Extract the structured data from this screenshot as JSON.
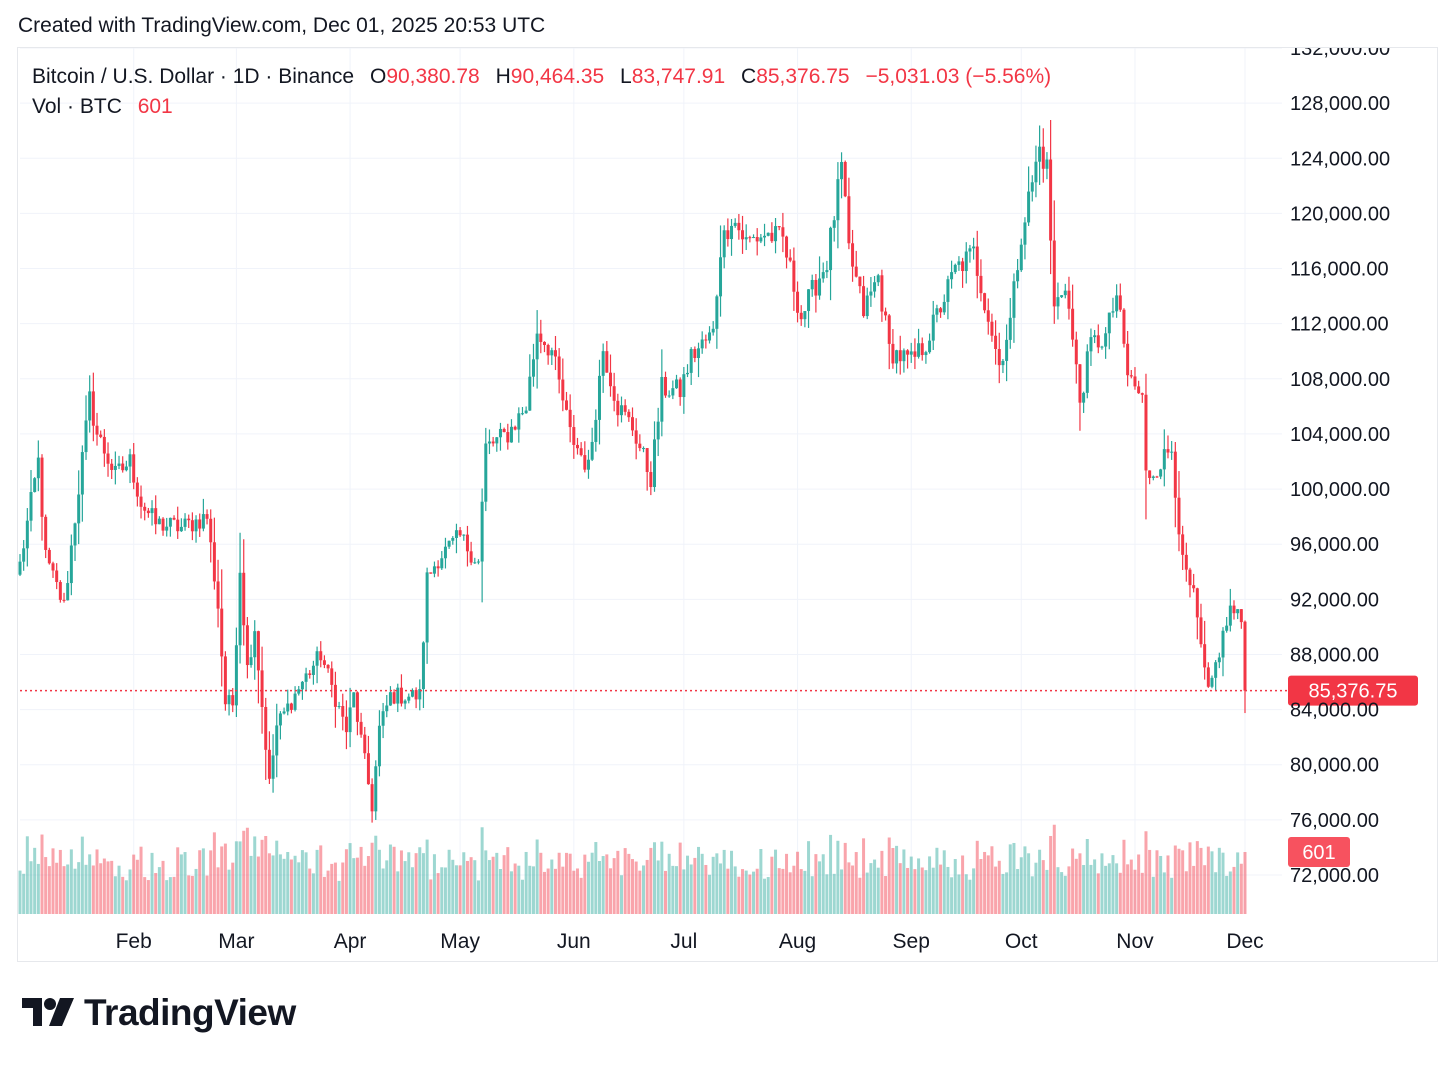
{
  "header": {
    "caption": "Created with TradingView.com, Dec 01, 2025 20:53 UTC"
  },
  "legend": {
    "symbol": "Bitcoin / U.S. Dollar · 1D · Binance",
    "o_label": "O",
    "o_value": "90,380.78",
    "h_label": "H",
    "h_value": "90,464.35",
    "l_label": "L",
    "l_value": "83,747.91",
    "c_label": "C",
    "c_value": "85,376.75",
    "change": "−5,031.03 (−5.56%)",
    "vol_label": "Vol · BTC",
    "vol_value": "601"
  },
  "branding": {
    "logo_text": "TradingView",
    "logo_icon": "tradingview-logo-icon"
  },
  "colors": {
    "up": "#26a69a",
    "down": "#f23645",
    "grid": "#f0f3fa",
    "text": "#131722"
  },
  "chart_data": {
    "type": "candlestick",
    "title": "Bitcoin / U.S. Dollar · 1D · Binance",
    "interval": "1D",
    "x_tick_labels": [
      "Feb",
      "Mar",
      "Apr",
      "May",
      "Jun",
      "Jul",
      "Aug",
      "Sep",
      "Oct",
      "Nov",
      "Dec"
    ],
    "y_tick_labels": [
      "132,000.00",
      "128,000.00",
      "124,000.00",
      "120,000.00",
      "116,000.00",
      "112,000.00",
      "108,000.00",
      "104,000.00",
      "100,000.00",
      "96,000.00",
      "92,000.00",
      "88,000.00",
      "84,000.00",
      "80,000.00",
      "76,000.00",
      "72,000.00"
    ],
    "ylim": [
      68000,
      132000
    ],
    "grid": true,
    "last_price": 85376.75,
    "last_price_label": "85,376.75",
    "last_volume_label": "601",
    "last_candle": {
      "open": 90380.78,
      "high": 90464.35,
      "low": 83747.91,
      "close": 85376.75,
      "volume": 601
    },
    "price_anchors": [
      [
        "2025-01-01",
        94500
      ],
      [
        "2025-01-06",
        102000
      ],
      [
        "2025-01-08",
        95000
      ],
      [
        "2025-01-13",
        91500
      ],
      [
        "2025-01-20",
        106500
      ],
      [
        "2025-01-22",
        104000
      ],
      [
        "2025-01-27",
        101000
      ],
      [
        "2025-01-31",
        102000
      ],
      [
        "2025-02-03",
        99000
      ],
      [
        "2025-02-07",
        97500
      ],
      [
        "2025-02-14",
        97200
      ],
      [
        "2025-02-21",
        98000
      ],
      [
        "2025-02-24",
        91500
      ],
      [
        "2025-02-26",
        84500
      ],
      [
        "2025-02-28",
        84400
      ],
      [
        "2025-03-02",
        94300
      ],
      [
        "2025-03-04",
        87000
      ],
      [
        "2025-03-06",
        90000
      ],
      [
        "2025-03-10",
        78600
      ],
      [
        "2025-03-12",
        82800
      ],
      [
        "2025-03-19",
        86000
      ],
      [
        "2025-03-24",
        88000
      ],
      [
        "2025-03-31",
        82500
      ],
      [
        "2025-04-02",
        85000
      ],
      [
        "2025-04-07",
        77000
      ],
      [
        "2025-04-09",
        82600
      ],
      [
        "2025-04-12",
        85000
      ],
      [
        "2025-04-20",
        85000
      ],
      [
        "2025-04-22",
        93500
      ],
      [
        "2025-04-25",
        95000
      ],
      [
        "2025-05-01",
        96500
      ],
      [
        "2025-05-06",
        94700
      ],
      [
        "2025-05-08",
        103000
      ],
      [
        "2025-05-14",
        104000
      ],
      [
        "2025-05-19",
        106000
      ],
      [
        "2025-05-22",
        111500
      ],
      [
        "2025-05-26",
        110000
      ],
      [
        "2025-05-31",
        104000
      ],
      [
        "2025-06-05",
        101500
      ],
      [
        "2025-06-09",
        110200
      ],
      [
        "2025-06-13",
        106000
      ],
      [
        "2025-06-17",
        104500
      ],
      [
        "2025-06-22",
        100800
      ],
      [
        "2025-06-25",
        107300
      ],
      [
        "2025-06-30",
        107100
      ],
      [
        "2025-07-03",
        109600
      ],
      [
        "2025-07-09",
        111300
      ],
      [
        "2025-07-11",
        117500
      ],
      [
        "2025-07-14",
        119800
      ],
      [
        "2025-07-18",
        117900
      ],
      [
        "2025-07-23",
        118500
      ],
      [
        "2025-07-28",
        118100
      ],
      [
        "2025-08-02",
        112500
      ],
      [
        "2025-08-06",
        114900
      ],
      [
        "2025-08-09",
        116500
      ],
      [
        "2025-08-13",
        123300
      ],
      [
        "2025-08-15",
        117300
      ],
      [
        "2025-08-19",
        112900
      ],
      [
        "2025-08-23",
        115400
      ],
      [
        "2025-08-26",
        110100
      ],
      [
        "2025-09-01",
        109200
      ],
      [
        "2025-09-05",
        110600
      ],
      [
        "2025-09-10",
        113900
      ],
      [
        "2025-09-13",
        115900
      ],
      [
        "2025-09-18",
        117100
      ],
      [
        "2025-09-22",
        112600
      ],
      [
        "2025-09-25",
        109000
      ],
      [
        "2025-09-28",
        112200
      ],
      [
        "2025-10-01",
        118600
      ],
      [
        "2025-10-06",
        124700
      ],
      [
        "2025-10-08",
        123300
      ],
      [
        "2025-10-10",
        113000
      ],
      [
        "2025-10-13",
        115100
      ],
      [
        "2025-10-17",
        106400
      ],
      [
        "2025-10-20",
        110500
      ],
      [
        "2025-10-24",
        111000
      ],
      [
        "2025-10-27",
        114100
      ],
      [
        "2025-10-30",
        108300
      ],
      [
        "2025-11-03",
        106500
      ],
      [
        "2025-11-04",
        101000
      ],
      [
        "2025-11-06",
        101300
      ],
      [
        "2025-11-11",
        103000
      ],
      [
        "2025-11-14",
        94500
      ],
      [
        "2025-11-17",
        92100
      ],
      [
        "2025-11-20",
        86600
      ],
      [
        "2025-11-21",
        85000
      ],
      [
        "2025-11-24",
        88300
      ],
      [
        "2025-11-27",
        91300
      ],
      [
        "2025-11-30",
        90400
      ],
      [
        "2025-12-01",
        85376.75
      ]
    ]
  }
}
